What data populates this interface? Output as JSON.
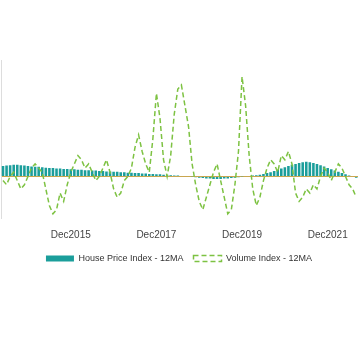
{
  "chart_data": {
    "type": "bar",
    "categories": [
      null,
      null,
      null,
      null,
      null,
      null,
      null,
      null,
      null,
      null,
      null,
      null,
      null,
      null,
      null,
      null,
      null,
      null,
      null,
      "Dec2015",
      null,
      null,
      null,
      null,
      null,
      null,
      null,
      null,
      null,
      null,
      null,
      null,
      null,
      null,
      null,
      null,
      null,
      null,
      null,
      null,
      null,
      null,
      null,
      "Dec2017",
      null,
      null,
      null,
      null,
      null,
      null,
      null,
      null,
      null,
      null,
      null,
      null,
      null,
      null,
      null,
      null,
      null,
      null,
      null,
      null,
      null,
      null,
      null,
      "Dec2019",
      null,
      null,
      null,
      null,
      null,
      null,
      null,
      null,
      null,
      null,
      null,
      null,
      null,
      null,
      null,
      null,
      null,
      null,
      null,
      null,
      null,
      null,
      null,
      "Dec2021",
      null,
      null,
      null,
      null,
      null,
      null,
      null,
      null
    ],
    "series": [
      {
        "name": "House Price Index - 12MA",
        "type": "bar",
        "color": "#1b9e9b",
        "values": [
          2.5,
          2.6,
          2.7,
          2.8,
          2.8,
          2.7,
          2.6,
          2.5,
          2.4,
          2.3,
          2.3,
          2.2,
          2.1,
          2.0,
          2.0,
          1.9,
          1.9,
          1.8,
          1.8,
          1.7,
          1.7,
          1.6,
          1.6,
          1.5,
          1.5,
          1.4,
          1.4,
          1.3,
          1.3,
          1.2,
          1.2,
          1.1,
          1.1,
          1.0,
          1.0,
          0.9,
          0.9,
          0.8,
          0.8,
          0.7,
          0.7,
          0.6,
          0.6,
          0.5,
          0.5,
          0.4,
          0.3,
          0.3,
          0.2,
          0.2,
          0.1,
          0.1,
          0,
          -0.1,
          -0.2,
          -0.3,
          -0.4,
          -0.5,
          -0.5,
          -0.6,
          -0.6,
          -0.6,
          -0.5,
          -0.5,
          -0.4,
          -0.3,
          -0.2,
          -0.1,
          0,
          0.1,
          0.2,
          0.3,
          0.4,
          0.6,
          0.8,
          1.0,
          1.3,
          1.6,
          1.9,
          2.2,
          2.5,
          2.8,
          3.0,
          3.2,
          3.4,
          3.5,
          3.4,
          3.2,
          3.0,
          2.7,
          2.4,
          2.0,
          1.7,
          1.4,
          1.1,
          0.8,
          0.5,
          0.2,
          0,
          -0.3
        ]
      },
      {
        "name": "Volume Index - 12MA",
        "type": "line",
        "color": "#7dc242",
        "line_style": "dashed",
        "values": [
          -1,
          -2,
          0,
          1,
          -1,
          -3,
          -2,
          0,
          2,
          3,
          2,
          1,
          -3,
          -7,
          -9,
          -8,
          -4,
          -6,
          -2,
          1,
          3,
          5,
          4,
          2,
          3,
          1,
          -1,
          0,
          2,
          4,
          1,
          -3,
          -5,
          -4,
          -1,
          0,
          2,
          7,
          10,
          6,
          3,
          1,
          9,
          20,
          14,
          4,
          0,
          5,
          15,
          21,
          22,
          17,
          12,
          3,
          -2,
          -6,
          -8,
          -5,
          -2,
          1,
          3,
          -1,
          -5,
          -9,
          -8,
          -2,
          6,
          24,
          17,
          5,
          -3,
          -7,
          -5,
          -1,
          2,
          4,
          3,
          1,
          5,
          4,
          6,
          3,
          -4,
          -6,
          -5,
          -3,
          -4,
          -2,
          -3,
          0,
          2,
          1,
          -1,
          1,
          3,
          2,
          0,
          -2,
          -3,
          -5
        ]
      }
    ],
    "ylim": [
      -10,
      28
    ],
    "yticks": [
      0
    ],
    "grid": true,
    "tick_labels": "x",
    "legend": "bottom"
  }
}
